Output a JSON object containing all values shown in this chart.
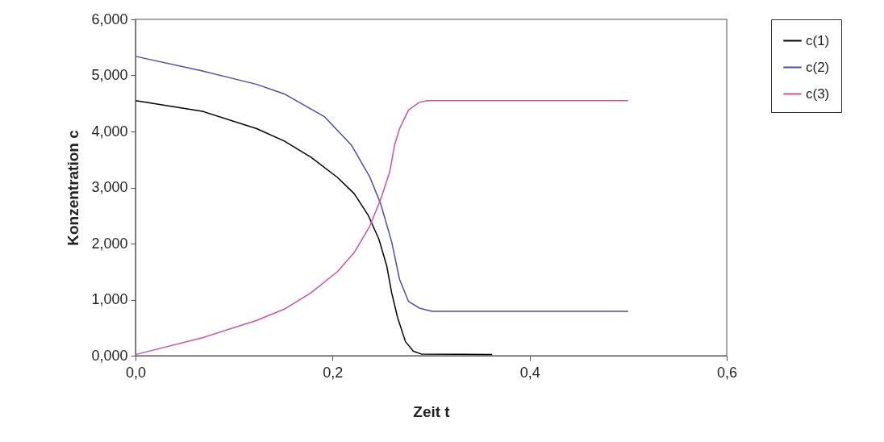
{
  "chart_data": {
    "type": "line",
    "xlabel": "Zeit t",
    "ylabel": "Konzentration c",
    "xlim": [
      0,
      0.6
    ],
    "ylim": [
      0,
      6
    ],
    "xticks": [
      {
        "value": 0,
        "label": "0,0"
      },
      {
        "value": 0.2,
        "label": "0,2"
      },
      {
        "value": 0.4,
        "label": "0,4"
      },
      {
        "value": 0.6,
        "label": "0,6"
      }
    ],
    "yticks": [
      {
        "value": 0,
        "label": "0,000"
      },
      {
        "value": 1,
        "label": "1,000"
      },
      {
        "value": 2,
        "label": "2,000"
      },
      {
        "value": 3,
        "label": "3,000"
      },
      {
        "value": 4,
        "label": "4,000"
      },
      {
        "value": 5,
        "label": "5,000"
      },
      {
        "value": 6,
        "label": "6,000"
      }
    ],
    "grid": false,
    "legend": "right",
    "marker": "none",
    "line_style": "solid",
    "series": [
      {
        "name": "c(1)",
        "color": "#000000",
        "x": [
          0,
          0.068,
          0.123,
          0.151,
          0.178,
          0.205,
          0.222,
          0.236,
          0.247,
          0.255,
          0.26,
          0.266,
          0.274,
          0.282,
          0.29,
          0.362
        ],
        "values": [
          4.55,
          4.36,
          4.05,
          3.83,
          3.54,
          3.18,
          2.89,
          2.51,
          2.08,
          1.6,
          1.12,
          0.68,
          0.25,
          0.08,
          0.03,
          0.02
        ]
      },
      {
        "name": "c(2)",
        "color": "#4b4bb4",
        "x": [
          0,
          0.068,
          0.123,
          0.151,
          0.192,
          0.219,
          0.238,
          0.249,
          0.26,
          0.268,
          0.277,
          0.288,
          0.301,
          0.5
        ],
        "values": [
          5.34,
          5.08,
          4.84,
          4.67,
          4.26,
          3.76,
          3.18,
          2.7,
          2.03,
          1.36,
          0.97,
          0.85,
          0.79,
          0.79
        ]
      },
      {
        "name": "c(3)",
        "color": "#d050a0",
        "x": [
          0,
          0.068,
          0.123,
          0.151,
          0.178,
          0.205,
          0.222,
          0.238,
          0.249,
          0.258,
          0.263,
          0.268,
          0.277,
          0.288,
          0.296,
          0.5
        ],
        "values": [
          0.02,
          0.32,
          0.63,
          0.83,
          1.12,
          1.5,
          1.84,
          2.32,
          2.8,
          3.28,
          3.76,
          4.05,
          4.38,
          4.52,
          4.55,
          4.55
        ]
      }
    ]
  }
}
